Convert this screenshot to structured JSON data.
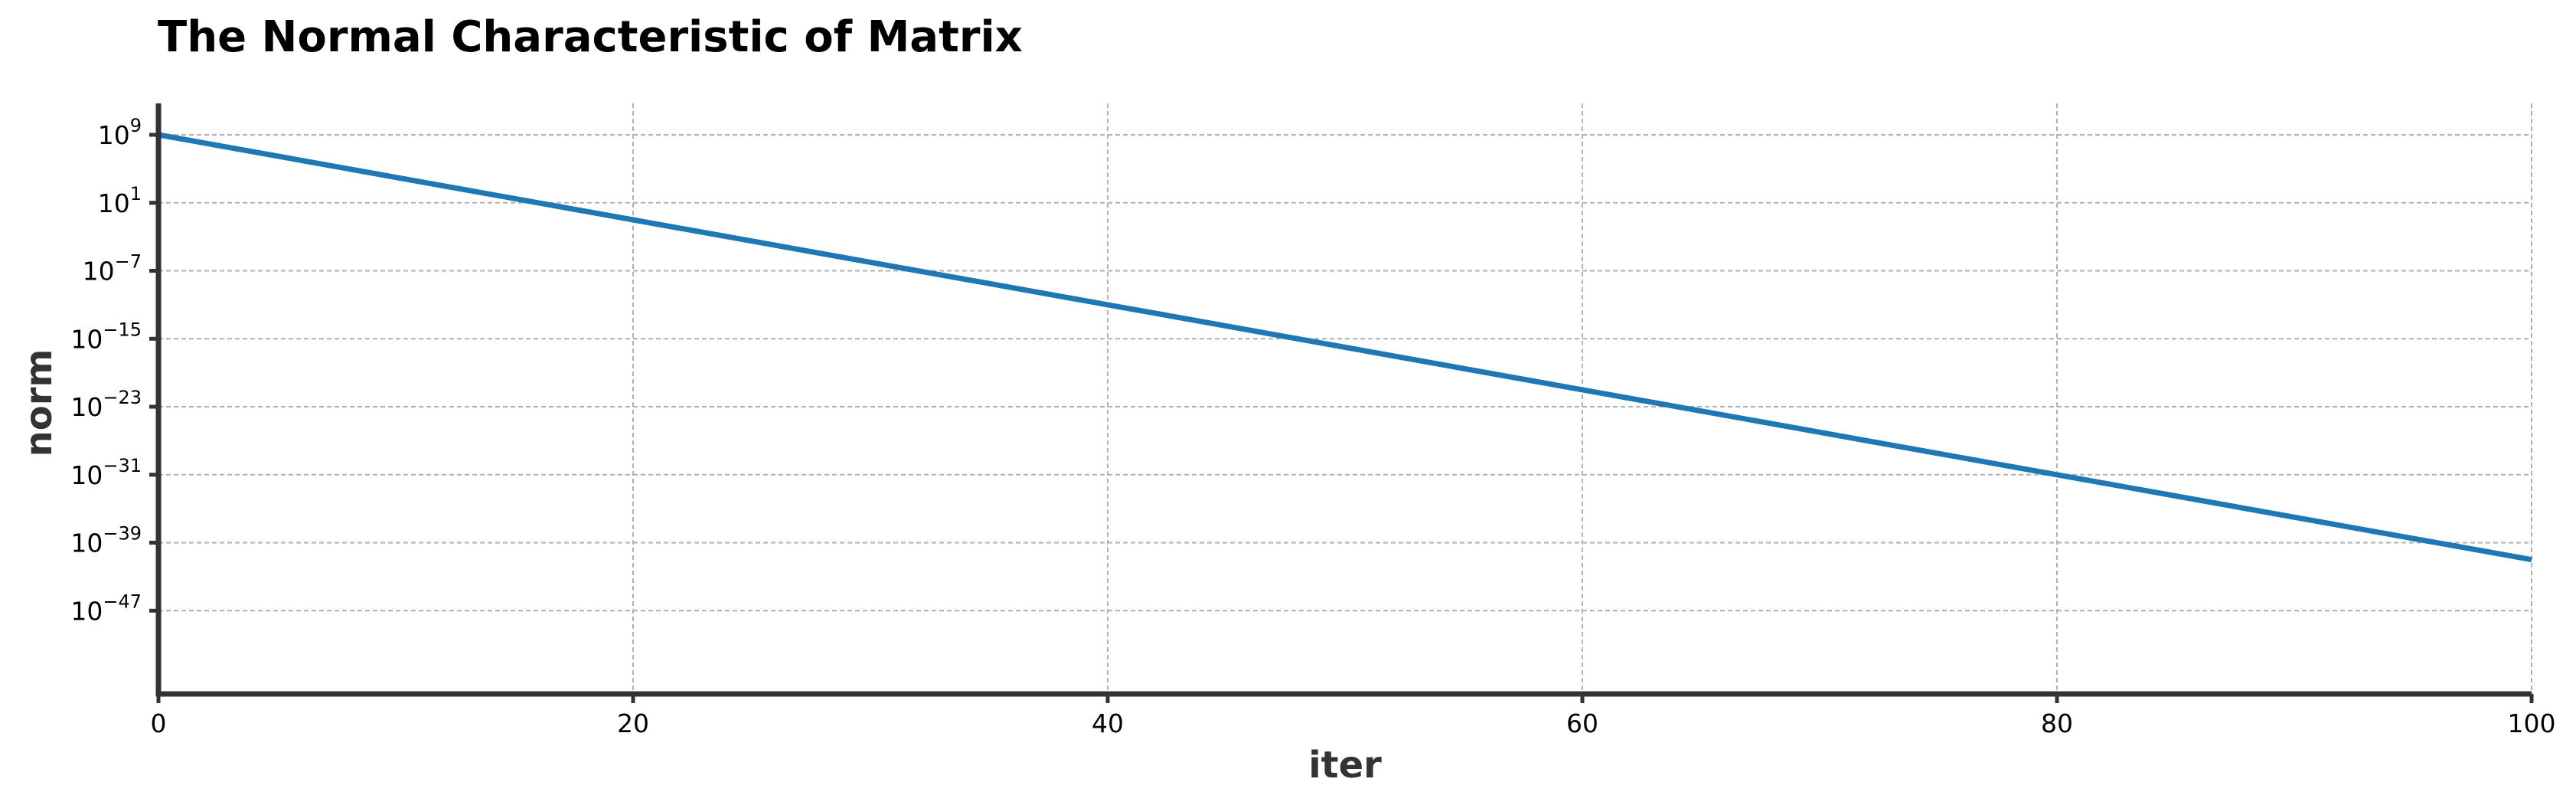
{
  "chart_data": {
    "type": "line",
    "title": "The Normal Characteristic of Matrix",
    "xlabel": "iter",
    "ylabel": "norm",
    "yscale": "log",
    "xlim": [
      0,
      100
    ],
    "ylim_log10": [
      -56.8,
      12.7
    ],
    "grid": true,
    "x_ticks": [
      0,
      20,
      40,
      60,
      80,
      100
    ],
    "y_ticks": [
      {
        "base": "10",
        "exp": "9",
        "value_log10": 9
      },
      {
        "base": "10",
        "exp": "1",
        "value_log10": 1
      },
      {
        "base": "10",
        "exp": "−7",
        "value_log10": -7
      },
      {
        "base": "10",
        "exp": "−15",
        "value_log10": -15
      },
      {
        "base": "10",
        "exp": "−23",
        "value_log10": -23
      },
      {
        "base": "10",
        "exp": "−31",
        "value_log10": -31
      },
      {
        "base": "10",
        "exp": "−39",
        "value_log10": -39
      },
      {
        "base": "10",
        "exp": "−47",
        "value_log10": -47
      }
    ],
    "series": [
      {
        "color": "#1f77b4",
        "x": [
          0,
          20,
          40,
          60,
          80,
          100
        ],
        "y": [
          "1e9",
          "1e-1",
          "1e-11",
          "1e-21",
          "1e-31",
          "1e-41"
        ],
        "y_log10": [
          9,
          -1,
          -11,
          -21,
          -31,
          -41
        ]
      }
    ]
  }
}
